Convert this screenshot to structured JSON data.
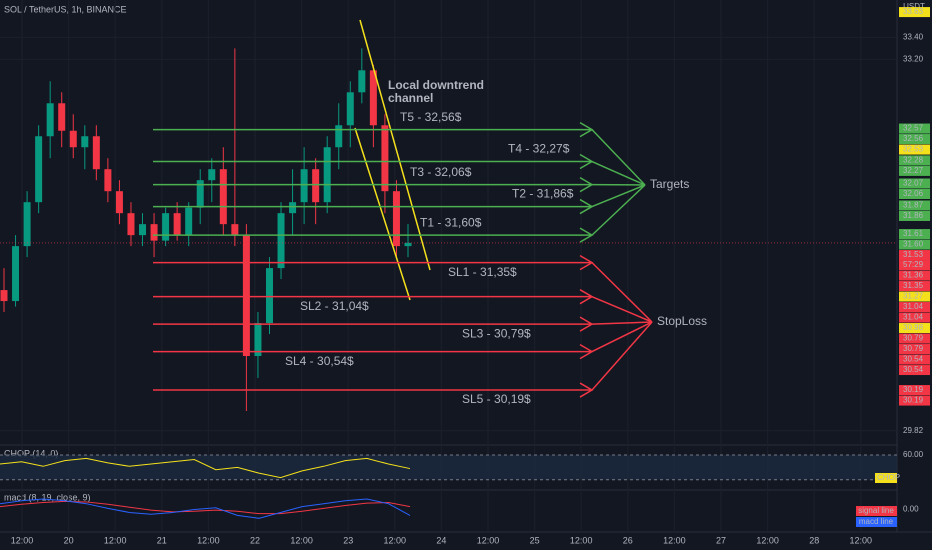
{
  "chart_data": {
    "type": "candlestick",
    "title": "SOL / TetherUS, 1h, BINANCE",
    "currency": "USDT",
    "ylim": [
      29.69,
      33.74
    ],
    "yticks": [
      {
        "value": 33.4,
        "label": "33.40"
      },
      {
        "value": 33.2,
        "label": "33.20"
      },
      {
        "value": 29.82,
        "label": "29.82"
      }
    ],
    "up_color": "#089981",
    "down_color": "#f23645",
    "open": [
      31.1,
      31.0,
      31.5,
      31.9,
      32.5,
      32.8,
      32.55,
      32.4,
      32.5,
      32.2,
      32.0,
      31.8,
      31.6,
      31.7,
      31.55,
      31.8,
      31.6,
      31.85,
      32.1,
      32.2,
      31.7,
      31.6,
      30.5,
      30.8,
      31.3,
      31.8,
      31.9,
      32.2,
      31.9,
      32.4,
      32.6,
      32.9,
      33.1,
      32.6,
      32.0,
      31.5
    ],
    "high": [
      31.3,
      31.6,
      32.0,
      32.6,
      33.0,
      32.9,
      32.7,
      32.6,
      32.6,
      32.3,
      32.1,
      31.9,
      31.8,
      31.8,
      31.85,
      31.9,
      31.9,
      32.2,
      32.3,
      32.4,
      33.3,
      31.7,
      30.9,
      31.4,
      31.9,
      32.2,
      32.4,
      32.3,
      32.5,
      32.8,
      33.0,
      33.3,
      33.15,
      32.7,
      32.1,
      31.7
    ],
    "low": [
      30.9,
      30.95,
      31.4,
      31.8,
      32.3,
      32.4,
      32.3,
      32.2,
      32.1,
      31.9,
      31.7,
      31.5,
      31.5,
      31.4,
      31.5,
      31.55,
      31.5,
      31.7,
      31.9,
      31.6,
      31.5,
      30.0,
      30.3,
      30.7,
      31.2,
      31.6,
      31.7,
      31.7,
      31.8,
      32.2,
      32.4,
      32.8,
      32.4,
      31.8,
      31.4,
      31.4
    ],
    "close": [
      31.0,
      31.5,
      31.9,
      32.5,
      32.8,
      32.55,
      32.4,
      32.5,
      32.2,
      32.0,
      31.8,
      31.6,
      31.7,
      31.55,
      31.8,
      31.6,
      31.85,
      32.1,
      32.2,
      31.7,
      31.6,
      30.5,
      30.8,
      31.3,
      31.8,
      31.9,
      32.2,
      31.9,
      32.4,
      32.6,
      32.9,
      33.1,
      32.6,
      32.0,
      31.5,
      31.53
    ],
    "time_labels": [
      "12:00",
      "20",
      "12:00",
      "21",
      "12:00",
      "22",
      "12:00",
      "23",
      "12:00",
      "24",
      "12:00",
      "25",
      "12:00",
      "26",
      "12:00",
      "27",
      "12:00",
      "28",
      "12:00"
    ],
    "price_tags": [
      {
        "value": 33.63,
        "label": "33.63",
        "color": "#f5e11b"
      },
      {
        "value": 32.57,
        "label": "32.57",
        "color": "#4caf50"
      },
      {
        "value": 32.56,
        "label": "32.56",
        "color": "#4caf50"
      },
      {
        "value": 32.53,
        "label": "32.53",
        "color": "#f5e11b"
      },
      {
        "value": 32.28,
        "label": "32.28",
        "color": "#4caf50"
      },
      {
        "value": 32.27,
        "label": "32.27",
        "color": "#4caf50"
      },
      {
        "value": 32.07,
        "label": "32.07",
        "color": "#4caf50"
      },
      {
        "value": 32.06,
        "label": "32.06",
        "color": "#4caf50"
      },
      {
        "value": 31.87,
        "label": "31.87",
        "color": "#4caf50"
      },
      {
        "value": 31.86,
        "label": "31.86",
        "color": "#4caf50"
      },
      {
        "value": 31.61,
        "label": "31.61",
        "color": "#4caf50"
      },
      {
        "value": 31.6,
        "label": "31.60",
        "color": "#4caf50"
      },
      {
        "value": 31.53,
        "label": "31.53",
        "color": "#f23645"
      },
      {
        "value": 31.36,
        "label": "31.36",
        "color": "#f23645"
      },
      {
        "value": 31.35,
        "label": "31.35",
        "color": "#f23645"
      },
      {
        "value": 31.27,
        "label": "31.27",
        "color": "#f5e11b"
      },
      {
        "value": 31.04,
        "label": "31.04",
        "color": "#f23645"
      },
      {
        "value": 31.04,
        "label": "31.04",
        "color": "#f23645"
      },
      {
        "value": 30.98,
        "label": "30.98",
        "color": "#f5e11b"
      },
      {
        "value": 30.79,
        "label": "30.79",
        "color": "#f23645"
      },
      {
        "value": 30.79,
        "label": "30.79",
        "color": "#f23645"
      },
      {
        "value": 30.54,
        "label": "30.54",
        "color": "#f23645"
      },
      {
        "value": 30.54,
        "label": "30.54",
        "color": "#f23645"
      },
      {
        "value": 30.19,
        "label": "30.19",
        "color": "#f23645"
      },
      {
        "value": 30.19,
        "label": "30.19",
        "color": "#f23645"
      }
    ],
    "countdown": "57:29",
    "targets": {
      "name": "Targets",
      "color": "#4caf50",
      "levels": [
        {
          "label": "T5 - 32,56$",
          "value": 32.56
        },
        {
          "label": "T4 - 32,27$",
          "value": 32.27
        },
        {
          "label": "T3 - 32,06$",
          "value": 32.06
        },
        {
          "label": "T2 - 31,86$",
          "value": 31.86
        },
        {
          "label": "T1 - 31,60$",
          "value": 31.6
        }
      ]
    },
    "stoploss": {
      "name": "StopLoss",
      "color": "#f23645",
      "levels": [
        {
          "label": "SL1 - 31,35$",
          "value": 31.35
        },
        {
          "label": "SL2 - 31,04$",
          "value": 31.04
        },
        {
          "label": "SL3 - 30,79$",
          "value": 30.79
        },
        {
          "label": "SL4 - 30,54$",
          "value": 30.54
        },
        {
          "label": "SL5 - 30,19$",
          "value": 30.19
        }
      ]
    },
    "channel_label": [
      "Local downtrend",
      "channel"
    ],
    "channel_color": "#f5e11b",
    "chop": {
      "title": "CHOP (14, 0)",
      "tag": "CHOP",
      "color": "#f5e11b",
      "ylim": [
        30,
        67
      ],
      "yticks": [
        {
          "value": 60,
          "label": "60.00"
        }
      ],
      "band": [
        60,
        38.2
      ],
      "values": [
        52,
        54,
        50,
        55,
        57,
        53,
        50,
        52,
        54,
        56,
        47,
        49,
        44,
        40,
        46,
        50,
        55,
        57,
        52,
        48
      ]
    },
    "macd": {
      "title": "macd (8, 19, close, 9)",
      "ylim": [
        -0.35,
        0.3
      ],
      "yticks": [
        {
          "value": 0,
          "label": "0.00"
        }
      ],
      "series": [
        {
          "name": "signal line",
          "color": "#f23645",
          "values": [
            0.05,
            0.09,
            0.12,
            0.14,
            0.13,
            0.09,
            0.04,
            -0.01,
            -0.04,
            -0.03,
            -0.01,
            -0.03,
            -0.07,
            -0.07,
            -0.03,
            0.02,
            0.07,
            0.11,
            0.12,
            0.05
          ]
        },
        {
          "name": "macd line",
          "color": "#2962ff",
          "values": [
            0.1,
            0.15,
            0.18,
            0.15,
            0.1,
            0.02,
            -0.05,
            -0.08,
            -0.05,
            0,
            0.03,
            -0.1,
            -0.15,
            -0.05,
            0.05,
            0.1,
            0.15,
            0.18,
            0.1,
            -0.1
          ]
        }
      ]
    }
  }
}
